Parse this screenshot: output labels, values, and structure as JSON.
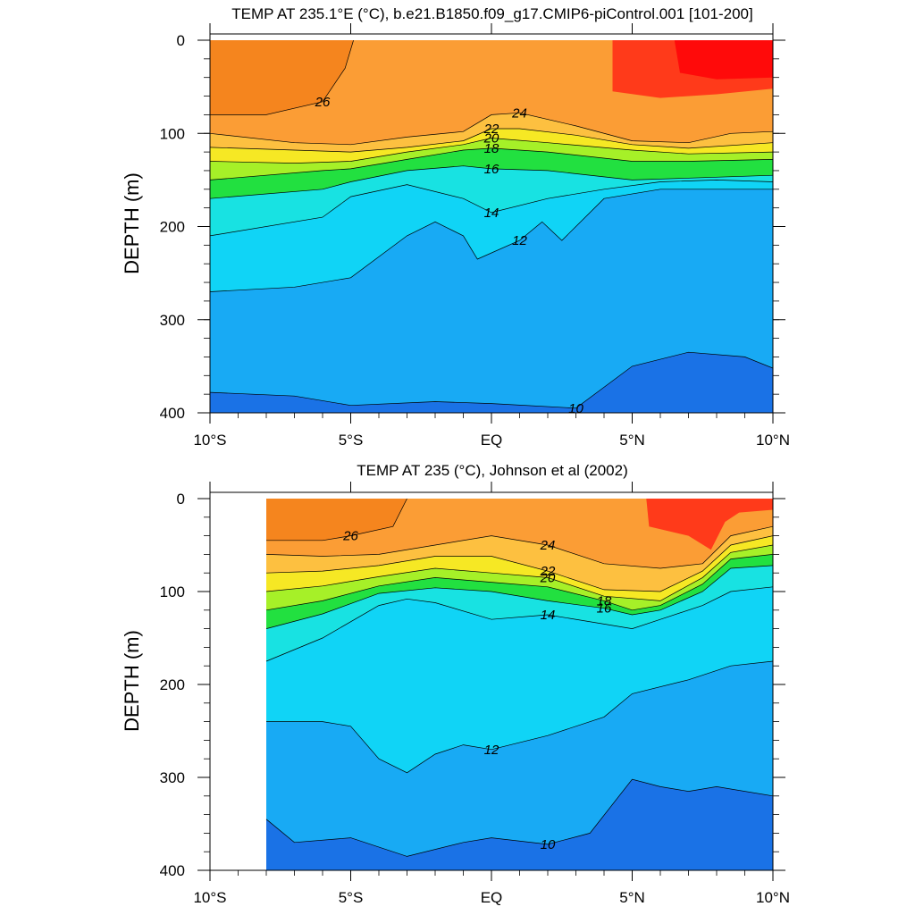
{
  "chart_data": [
    {
      "type": "contour",
      "title": "TEMP AT 235.1°E (°C), b.e21.B1850.f09_g17.CMIP6-piControl.001 [101-200]",
      "ylabel": "DEPTH (m)",
      "xlabel": "",
      "x_tick_labels": [
        "10°S",
        "5°S",
        "EQ",
        "5°N",
        "10°N"
      ],
      "y_tick_labels": [
        "0",
        "100",
        "200",
        "300",
        "400"
      ],
      "xlim": [
        -10,
        10
      ],
      "ylim": [
        0,
        400
      ],
      "y_reversed": true,
      "contour_levels_c": [
        10,
        12,
        14,
        16,
        18,
        20,
        22,
        24,
        26
      ],
      "isotherms": [
        {
          "temp": 26,
          "points": [
            [
              -10,
              80
            ],
            [
              -8,
              80
            ],
            [
              -6,
              66
            ],
            [
              -5.2,
              30
            ],
            [
              -4.9,
              0
            ]
          ]
        },
        {
          "temp": 24,
          "points": [
            [
              -10,
              100
            ],
            [
              -7,
              110
            ],
            [
              -5,
              112
            ],
            [
              -3,
              104
            ],
            [
              -1,
              98
            ],
            [
              0,
              80
            ],
            [
              1,
              78
            ],
            [
              3,
              92
            ],
            [
              5,
              108
            ],
            [
              7,
              110
            ],
            [
              8.5,
              100
            ],
            [
              10,
              98
            ]
          ]
        },
        {
          "temp": 22,
          "points": [
            [
              -10,
              115
            ],
            [
              -7,
              118
            ],
            [
              -5,
              120
            ],
            [
              -3,
              115
            ],
            [
              -1,
              108
            ],
            [
              0,
              95
            ],
            [
              1,
              95
            ],
            [
              3,
              102
            ],
            [
              5,
              112
            ],
            [
              7,
              116
            ],
            [
              10,
              110
            ]
          ]
        },
        {
          "temp": 20,
          "points": [
            [
              -10,
              130
            ],
            [
              -7,
              132
            ],
            [
              -5,
              130
            ],
            [
              -3,
              120
            ],
            [
              -1,
              112
            ],
            [
              0,
              105
            ],
            [
              2,
              110
            ],
            [
              5,
              118
            ],
            [
              7,
              122
            ],
            [
              10,
              120
            ]
          ]
        },
        {
          "temp": 18,
          "points": [
            [
              -10,
              150
            ],
            [
              -6,
              140
            ],
            [
              -5,
              138
            ],
            [
              -3,
              128
            ],
            [
              -1,
              118
            ],
            [
              0,
              116
            ],
            [
              2,
              120
            ],
            [
              5,
              130
            ],
            [
              7,
              130
            ],
            [
              10,
              128
            ]
          ]
        },
        {
          "temp": 16,
          "points": [
            [
              -10,
              170
            ],
            [
              -6,
              160
            ],
            [
              -5,
              152
            ],
            [
              -3,
              140
            ],
            [
              -1,
              135
            ],
            [
              0,
              138
            ],
            [
              2,
              140
            ],
            [
              5,
              150
            ],
            [
              7,
              148
            ],
            [
              10,
              145
            ]
          ]
        },
        {
          "temp": 14,
          "points": [
            [
              -10,
              210
            ],
            [
              -6,
              190
            ],
            [
              -5,
              168
            ],
            [
              -3,
              155
            ],
            [
              -1,
              170
            ],
            [
              0,
              185
            ],
            [
              2,
              170
            ],
            [
              4,
              160
            ],
            [
              6,
              152
            ],
            [
              8,
              150
            ],
            [
              10,
              152
            ]
          ]
        },
        {
          "temp": 12,
          "points": [
            [
              -10,
              270
            ],
            [
              -7,
              265
            ],
            [
              -5,
              255
            ],
            [
              -3,
              210
            ],
            [
              -2,
              195
            ],
            [
              -1,
              210
            ],
            [
              -0.5,
              235
            ],
            [
              1,
              215
            ],
            [
              1.8,
              195
            ],
            [
              2.5,
              215
            ],
            [
              4,
              170
            ],
            [
              6,
              160
            ],
            [
              8,
              160
            ],
            [
              10,
              160
            ]
          ]
        },
        {
          "temp": 10,
          "points": [
            [
              -10,
              378
            ],
            [
              -7,
              382
            ],
            [
              -5,
              392
            ],
            [
              -2,
              388
            ],
            [
              0,
              390
            ],
            [
              3,
              395
            ],
            [
              5,
              350
            ],
            [
              7,
              335
            ],
            [
              9,
              340
            ],
            [
              10,
              352
            ]
          ]
        }
      ]
    },
    {
      "type": "contour",
      "title": "TEMP AT 235 (°C), Johnson et al (2002)",
      "ylabel": "DEPTH (m)",
      "xlabel": "",
      "x_tick_labels": [
        "10°S",
        "5°S",
        "EQ",
        "5°N",
        "10°N"
      ],
      "y_tick_labels": [
        "0",
        "100",
        "200",
        "300",
        "400"
      ],
      "xlim": [
        -10,
        10
      ],
      "ylim": [
        0,
        400
      ],
      "y_reversed": true,
      "data_start_x": -8,
      "contour_levels_c": [
        10,
        12,
        14,
        16,
        18,
        20,
        22,
        24,
        26
      ],
      "isotherms": [
        {
          "temp": 26,
          "points": [
            [
              -8,
              45
            ],
            [
              -6,
              45
            ],
            [
              -5,
              40
            ],
            [
              -3.5,
              30
            ],
            [
              -3,
              0
            ]
          ]
        },
        {
          "temp": 24,
          "points": [
            [
              -8,
              60
            ],
            [
              -6,
              62
            ],
            [
              -4,
              60
            ],
            [
              -2,
              50
            ],
            [
              0,
              40
            ],
            [
              2,
              50
            ],
            [
              4,
              70
            ],
            [
              6,
              75
            ],
            [
              7.5,
              70
            ],
            [
              8.5,
              40
            ],
            [
              10,
              30
            ]
          ]
        },
        {
          "temp": 22,
          "points": [
            [
              -8,
              80
            ],
            [
              -6,
              78
            ],
            [
              -4,
              72
            ],
            [
              -2,
              62
            ],
            [
              0,
              62
            ],
            [
              2,
              78
            ],
            [
              4,
              98
            ],
            [
              6,
              100
            ],
            [
              7.5,
              78
            ],
            [
              8.5,
              50
            ],
            [
              10,
              40
            ]
          ]
        },
        {
          "temp": 20,
          "points": [
            [
              -8,
              100
            ],
            [
              -6,
              94
            ],
            [
              -4,
              84
            ],
            [
              -2,
              75
            ],
            [
              0,
              80
            ],
            [
              2,
              85
            ],
            [
              4,
              105
            ],
            [
              6,
              110
            ],
            [
              7.5,
              85
            ],
            [
              8.5,
              58
            ],
            [
              10,
              50
            ]
          ]
        },
        {
          "temp": 18,
          "points": [
            [
              -8,
              120
            ],
            [
              -6,
              110
            ],
            [
              -4,
              94
            ],
            [
              -2,
              85
            ],
            [
              0,
              90
            ],
            [
              2,
              95
            ],
            [
              4,
              110
            ],
            [
              5,
              120
            ],
            [
              6,
              115
            ],
            [
              7.5,
              92
            ],
            [
              8.5,
              65
            ],
            [
              10,
              60
            ]
          ]
        },
        {
          "temp": 16,
          "points": [
            [
              -8,
              140
            ],
            [
              -6,
              124
            ],
            [
              -4,
              102
            ],
            [
              -2,
              96
            ],
            [
              0,
              100
            ],
            [
              2,
              110
            ],
            [
              4,
              118
            ],
            [
              5,
              125
            ],
            [
              6,
              120
            ],
            [
              7.5,
              100
            ],
            [
              8.5,
              75
            ],
            [
              10,
              72
            ]
          ]
        },
        {
          "temp": 14,
          "points": [
            [
              -8,
              175
            ],
            [
              -6,
              150
            ],
            [
              -4,
              115
            ],
            [
              -3,
              108
            ],
            [
              -2,
              112
            ],
            [
              0,
              130
            ],
            [
              2,
              125
            ],
            [
              4,
              135
            ],
            [
              5,
              140
            ],
            [
              6,
              130
            ],
            [
              7.5,
              115
            ],
            [
              8.5,
              100
            ],
            [
              10,
              95
            ]
          ]
        },
        {
          "temp": 12,
          "points": [
            [
              -8,
              240
            ],
            [
              -6,
              240
            ],
            [
              -5,
              245
            ],
            [
              -4,
              280
            ],
            [
              -3,
              295
            ],
            [
              -2,
              275
            ],
            [
              -1,
              265
            ],
            [
              0,
              270
            ],
            [
              2,
              255
            ],
            [
              4,
              235
            ],
            [
              5,
              210
            ],
            [
              7,
              195
            ],
            [
              8.5,
              180
            ],
            [
              10,
              175
            ]
          ]
        },
        {
          "temp": 10,
          "points": [
            [
              -8,
              345
            ],
            [
              -7,
              370
            ],
            [
              -5,
              365
            ],
            [
              -3,
              385
            ],
            [
              -1,
              370
            ],
            [
              0,
              365
            ],
            [
              2,
              372
            ],
            [
              3.5,
              360
            ],
            [
              5,
              302
            ],
            [
              6,
              310
            ],
            [
              7,
              315
            ],
            [
              8,
              310
            ],
            [
              10,
              320
            ]
          ]
        }
      ]
    }
  ]
}
